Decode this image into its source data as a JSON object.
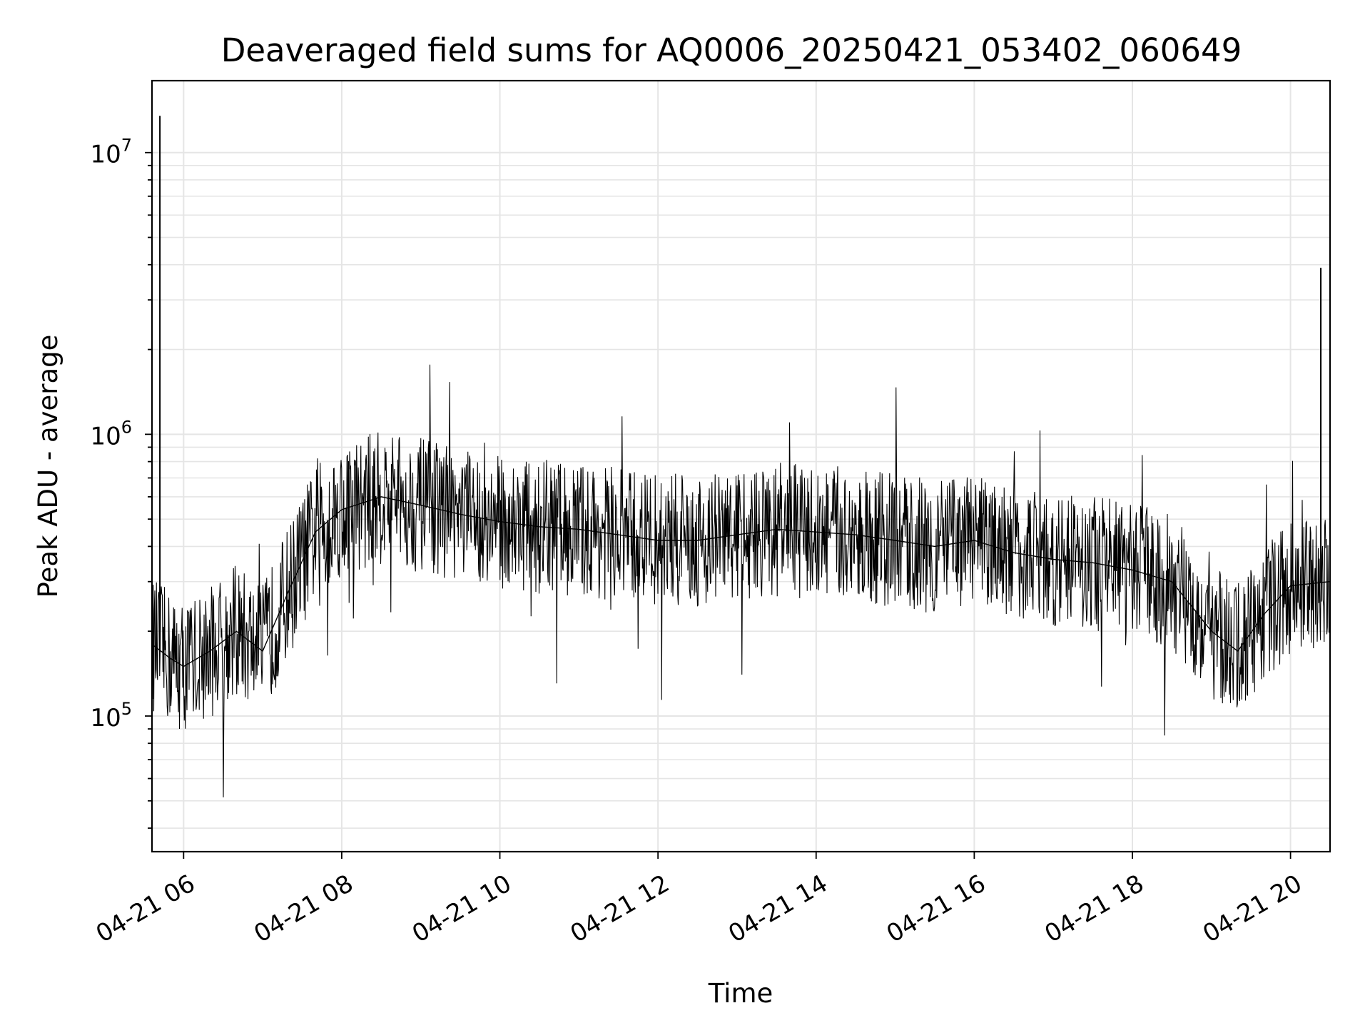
{
  "chart_data": {
    "type": "line",
    "title": "Deaveraged field sums for AQ0006_20250421_053402_060649",
    "xlabel": "Time",
    "ylabel": "Peak ADU - average",
    "y_scale": "log",
    "xlim": [
      "2025-04-21 05:36",
      "2025-04-21 20:30"
    ],
    "ylim": [
      33000,
      18000000
    ],
    "x_ticks": [
      {
        "value": "2025-04-21 06:00",
        "label": "04-21 06"
      },
      {
        "value": "2025-04-21 08:00",
        "label": "04-21 08"
      },
      {
        "value": "2025-04-21 10:00",
        "label": "04-21 10"
      },
      {
        "value": "2025-04-21 12:00",
        "label": "04-21 12"
      },
      {
        "value": "2025-04-21 14:00",
        "label": "04-21 14"
      },
      {
        "value": "2025-04-21 16:00",
        "label": "04-21 16"
      },
      {
        "value": "2025-04-21 18:00",
        "label": "04-21 18"
      },
      {
        "value": "2025-04-21 20:00",
        "label": "04-21 20"
      }
    ],
    "y_ticks": [
      {
        "value": 100000,
        "base": "10",
        "exp": "5"
      },
      {
        "value": 1000000,
        "base": "10",
        "exp": "6"
      },
      {
        "value": 10000000,
        "base": "10",
        "exp": "7"
      }
    ],
    "grid": true,
    "line_color": "#000000",
    "grid_color": "#e5e5e5",
    "series": [
      {
        "x": [
          "2025-04-21 05:36",
          "2025-04-21 05:50",
          "2025-04-21 06:00",
          "2025-04-21 06:20",
          "2025-04-21 06:40",
          "2025-04-21 07:00",
          "2025-04-21 07:20",
          "2025-04-21 07:40",
          "2025-04-21 08:00",
          "2025-04-21 08:30",
          "2025-04-21 09:00",
          "2025-04-21 09:30",
          "2025-04-21 10:00",
          "2025-04-21 10:30",
          "2025-04-21 11:00",
          "2025-04-21 11:30",
          "2025-04-21 12:00",
          "2025-04-21 12:30",
          "2025-04-21 13:00",
          "2025-04-21 13:30",
          "2025-04-21 14:00",
          "2025-04-21 14:30",
          "2025-04-21 15:00",
          "2025-04-21 15:30",
          "2025-04-21 16:00",
          "2025-04-21 16:30",
          "2025-04-21 17:00",
          "2025-04-21 17:30",
          "2025-04-21 18:00",
          "2025-04-21 18:30",
          "2025-04-21 19:00",
          "2025-04-21 19:20",
          "2025-04-21 19:40",
          "2025-04-21 20:00",
          "2025-04-21 20:30"
        ],
        "values": [
          180000,
          160000,
          150000,
          170000,
          200000,
          170000,
          280000,
          450000,
          540000,
          600000,
          560000,
          520000,
          490000,
          470000,
          460000,
          440000,
          420000,
          420000,
          440000,
          460000,
          450000,
          440000,
          420000,
          400000,
          420000,
          380000,
          360000,
          350000,
          330000,
          300000,
          200000,
          170000,
          230000,
          290000,
          300000
        ]
      }
    ],
    "spikes": [
      {
        "x": "2025-04-21 05:42",
        "value": 13500000
      },
      {
        "x": "2025-04-21 20:23",
        "value": 3900000
      }
    ]
  }
}
